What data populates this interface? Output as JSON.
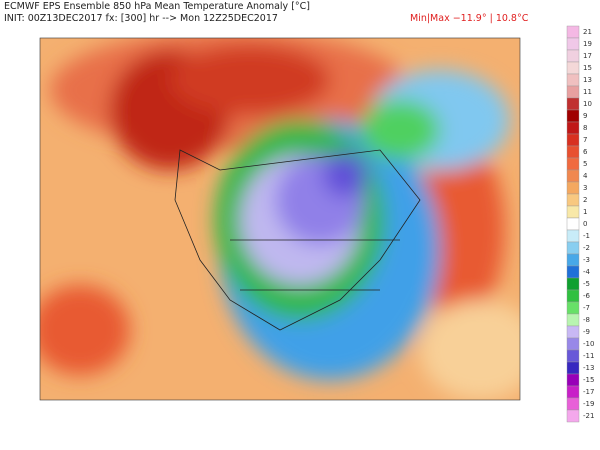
{
  "header": {
    "title": "ECMWF EPS Ensemble 850 hPa Mean Temperature Anomaly [°C]",
    "init": "INIT: 00Z13DEC2017 fx: [300] hr --> Mon 12Z25DEC2017",
    "minmax": "Min|Max −11.9° | 10.8°C"
  },
  "colorbar": {
    "labels": [
      "21",
      "19",
      "17",
      "15",
      "13",
      "11",
      "10",
      "9",
      "8",
      "7",
      "6",
      "5",
      "4",
      "3",
      "2",
      "1",
      "0",
      "-1",
      "-2",
      "-3",
      "-4",
      "-5",
      "-6",
      "-7",
      "-8",
      "-9",
      "-10",
      "-11",
      "-13",
      "-15",
      "-17",
      "-19",
      "-21"
    ],
    "colors": [
      "#f4b8e4",
      "#f0c8e8",
      "#f0d0e0",
      "#f4d8d8",
      "#f0c0c0",
      "#e8a0a0",
      "#c03030",
      "#a00000",
      "#c01818",
      "#d83020",
      "#e85030",
      "#f06a40",
      "#f08850",
      "#f4a860",
      "#f8c880",
      "#f8e8a8",
      "#ffffff",
      "#c8ecf8",
      "#88cef0",
      "#48a8e8",
      "#2070d8",
      "#10a030",
      "#30c040",
      "#68e068",
      "#b8f4b0",
      "#c8b8f4",
      "#9888e8",
      "#6858d8",
      "#3828c0",
      "#9800b8",
      "#c820c8",
      "#e860d8",
      "#f4a8ec"
    ]
  }
}
